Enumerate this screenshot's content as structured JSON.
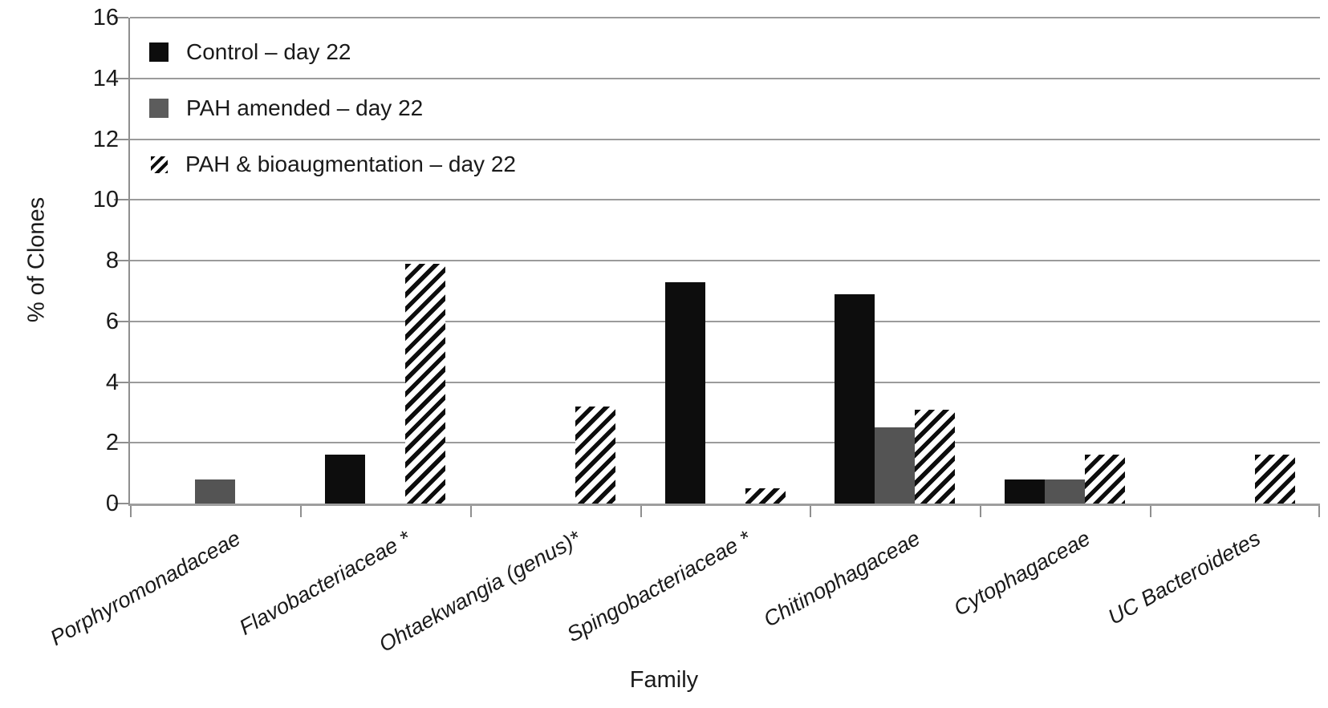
{
  "chart_data": {
    "type": "bar",
    "title": "",
    "xlabel": "Family",
    "ylabel": "% of Clones",
    "ylim": [
      0,
      16
    ],
    "yticks": [
      0,
      2,
      4,
      6,
      8,
      10,
      12,
      14,
      16
    ],
    "grid": true,
    "legend_position": "top-left-inside",
    "categories": [
      "Porphyromonadaceae",
      "Flavobacteriaceae *",
      "Ohtaekwangia (genus)*",
      "Spingobacteriaceae *",
      "Chitinophagaceae",
      "Cytophagaceae",
      "UC Bacteroidetes"
    ],
    "series": [
      {
        "name": "Control – day 22",
        "style": "solid-black",
        "color": "#0d0d0d",
        "values": [
          0,
          1.6,
          0,
          7.3,
          6.9,
          0.8,
          0
        ]
      },
      {
        "name": "PAH amended – day 22",
        "style": "solid-gray",
        "color": "#545454",
        "values": [
          0.8,
          0,
          0,
          0,
          2.5,
          0.8,
          0
        ]
      },
      {
        "name": "PAH & bioaugmentation – day 22",
        "style": "hatched",
        "color": "#0d0d0d",
        "values": [
          0,
          7.9,
          3.2,
          0.5,
          3.1,
          1.6,
          1.6
        ]
      }
    ]
  },
  "colors": {
    "gridline": "#9b9b9b",
    "axis": "#8f8f8f",
    "bar_black": "#0d0d0d",
    "bar_gray": "#545454",
    "text": "#1a1a1a",
    "background": "#ffffff"
  }
}
